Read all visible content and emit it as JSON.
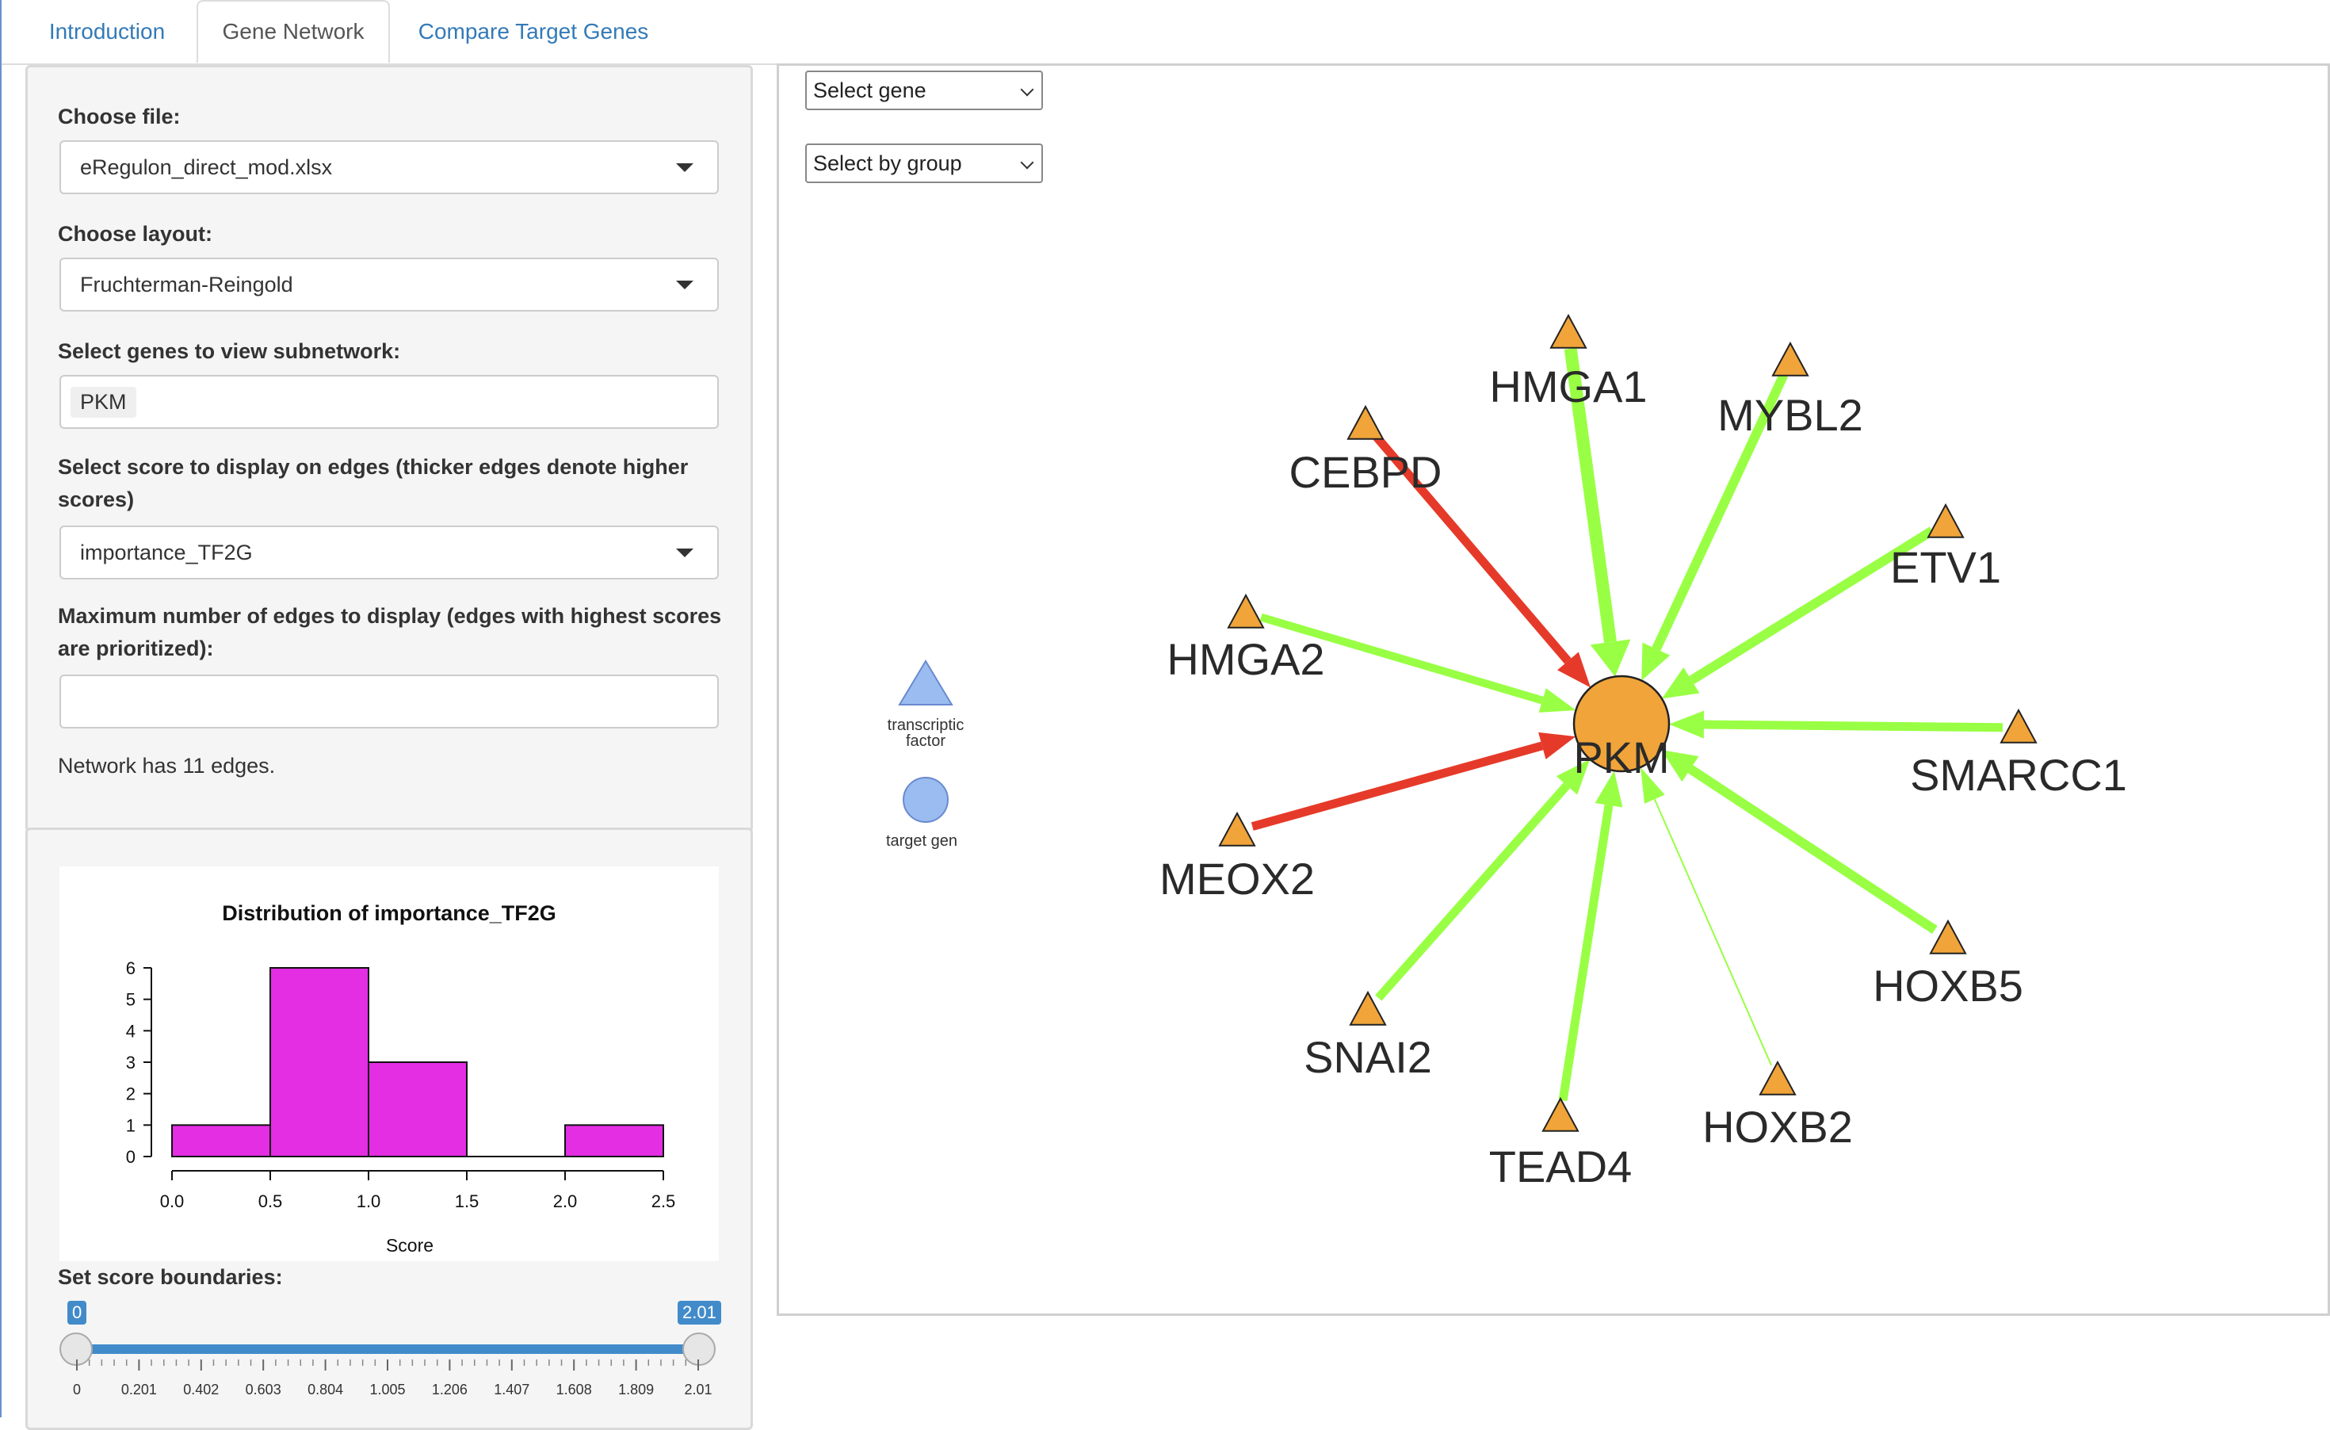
{
  "tabs": [
    {
      "label": "Introduction",
      "active": false
    },
    {
      "label": "Gene Network",
      "active": true
    },
    {
      "label": "Compare Target Genes",
      "active": false
    }
  ],
  "sidebar": {
    "file_label": "Choose file:",
    "file_value": "eRegulon_direct_mod.xlsx",
    "layout_label": "Choose layout:",
    "layout_value": "Fruchterman-Reingold",
    "genes_label": "Select genes to view subnetwork:",
    "genes_chip": "PKM",
    "score_label": "Select score to display on edges (thicker edges denote higher scores)",
    "score_value": "importance_TF2G",
    "max_edges_label": "Maximum number of edges to display (edges with highest scores are prioritized):",
    "max_edges_value": "",
    "network_info": "Network has 11 edges.",
    "score_bounds_label": "Set score boundaries:",
    "slider": {
      "min": "0",
      "max": "2.01",
      "ticks": [
        "0",
        "0.201",
        "0.402",
        "0.603",
        "0.804",
        "1.005",
        "1.206",
        "1.407",
        "1.608",
        "1.809",
        "2.01"
      ]
    }
  },
  "chart_data": {
    "type": "bar",
    "title": "Distribution of importance_TF2G",
    "xlabel": "Score",
    "ylabel": "",
    "bins": [
      [
        0,
        0.5
      ],
      [
        0.5,
        1.0
      ],
      [
        1.0,
        1.5
      ],
      [
        1.5,
        2.0
      ],
      [
        2.0,
        2.5
      ]
    ],
    "categories": [
      "0.0-0.5",
      "0.5-1.0",
      "1.0-1.5",
      "1.5-2.0",
      "2.0-2.5"
    ],
    "values": [
      1,
      6,
      3,
      0,
      1
    ],
    "xticks": [
      "0.0",
      "0.5",
      "1.0",
      "1.5",
      "2.0",
      "2.5"
    ],
    "yticks": [
      "0",
      "1",
      "2",
      "3",
      "4",
      "5",
      "6"
    ],
    "xlim": [
      0,
      2.5
    ],
    "ylim": [
      0,
      6
    ],
    "bar_color": "#e32ee3"
  },
  "network": {
    "select_gene": "Select gene",
    "select_group": "Select by group",
    "legend": {
      "tf_label": "transcriptic factor",
      "target_label": "target gen"
    },
    "colors": {
      "positive": "#99ff44",
      "negative": "#e53a2a",
      "node": "#f0a43a",
      "legend": "#9bbcf0"
    },
    "center": "PKM",
    "tfs": [
      {
        "name": "HMGA1",
        "sign": "positive"
      },
      {
        "name": "MYBL2",
        "sign": "positive"
      },
      {
        "name": "CEBPD",
        "sign": "negative"
      },
      {
        "name": "ETV1",
        "sign": "positive"
      },
      {
        "name": "HMGA2",
        "sign": "positive"
      },
      {
        "name": "SMARCC1",
        "sign": "positive"
      },
      {
        "name": "MEOX2",
        "sign": "negative"
      },
      {
        "name": "HOXB5",
        "sign": "positive"
      },
      {
        "name": "SNAI2",
        "sign": "positive"
      },
      {
        "name": "HOXB2",
        "sign": "positive"
      },
      {
        "name": "TEAD4",
        "sign": "positive"
      }
    ]
  }
}
